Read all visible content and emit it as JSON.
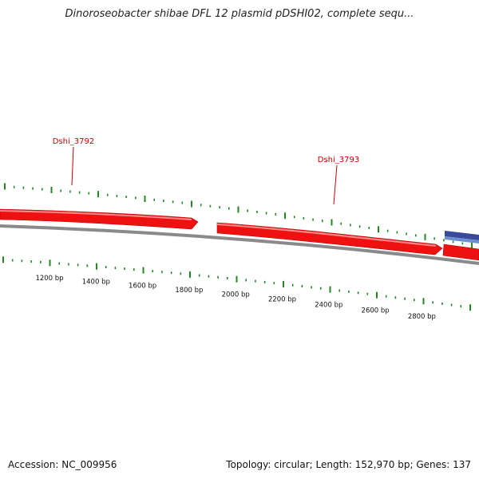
{
  "title": "Dinoroseobacter shibae DFL 12 plasmid pDSHI02, complete sequ...",
  "footer": {
    "accession": "Accession: NC_009956",
    "info": "Topology: circular; Length: 152,970 bp; Genes: 137"
  },
  "scale": {
    "unit": "bp",
    "labels": [
      "1200 bp",
      "1400 bp",
      "1600 bp",
      "1800 bp",
      "2000 bp",
      "2200 bp",
      "2400 bp",
      "2600 bp",
      "2800 bp"
    ]
  },
  "genes": [
    {
      "name": "Dshi_3792",
      "strand": "+"
    },
    {
      "name": "Dshi_3793",
      "strand": "+"
    }
  ],
  "colors": {
    "gene": "#ee1111",
    "gene_label": "#cc0000",
    "backbone": "#7a7a7a",
    "tick": "#228822",
    "feature_dark": "#3a4a9a",
    "feature_light": "#6b8fd0"
  }
}
